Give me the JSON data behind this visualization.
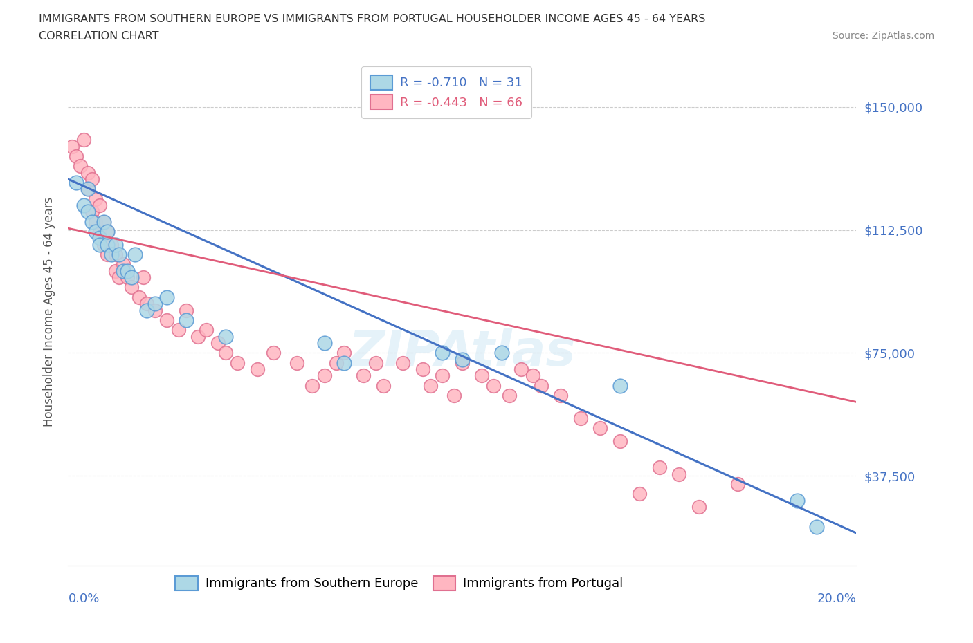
{
  "title_line1": "IMMIGRANTS FROM SOUTHERN EUROPE VS IMMIGRANTS FROM PORTUGAL HOUSEHOLDER INCOME AGES 45 - 64 YEARS",
  "title_line2": "CORRELATION CHART",
  "source": "Source: ZipAtlas.com",
  "ylabel": "Householder Income Ages 45 - 64 years",
  "xlim": [
    0.0,
    0.2
  ],
  "ylim": [
    10000,
    165000
  ],
  "yticks": [
    37500,
    75000,
    112500,
    150000
  ],
  "ytick_labels": [
    "$37,500",
    "$75,000",
    "$112,500",
    "$150,000"
  ],
  "series1_label": "Immigrants from Southern Europe",
  "series1_R": -0.71,
  "series1_N": 31,
  "series1_color": "#ADD8E6",
  "series1_edge_color": "#5B9BD5",
  "series1_line_color": "#4472C4",
  "series2_label": "Immigrants from Portugal",
  "series2_R": -0.443,
  "series2_N": 66,
  "series2_color": "#FFB6C1",
  "series2_edge_color": "#E07090",
  "series2_line_color": "#E05C7A",
  "watermark": "ZIPAtlas",
  "blue_trend_x0": 0.0,
  "blue_trend_y0": 128000,
  "blue_trend_x1": 0.2,
  "blue_trend_y1": 20000,
  "pink_trend_x0": 0.0,
  "pink_trend_y0": 113000,
  "pink_trend_x1": 0.2,
  "pink_trend_y1": 60000,
  "blue_x": [
    0.002,
    0.004,
    0.005,
    0.005,
    0.006,
    0.007,
    0.008,
    0.008,
    0.009,
    0.01,
    0.01,
    0.011,
    0.012,
    0.013,
    0.014,
    0.015,
    0.016,
    0.017,
    0.02,
    0.022,
    0.025,
    0.03,
    0.04,
    0.065,
    0.07,
    0.095,
    0.1,
    0.11,
    0.14,
    0.185,
    0.19
  ],
  "blue_y": [
    127000,
    120000,
    125000,
    118000,
    115000,
    112000,
    110000,
    108000,
    115000,
    108000,
    112000,
    105000,
    108000,
    105000,
    100000,
    100000,
    98000,
    105000,
    88000,
    90000,
    92000,
    85000,
    80000,
    78000,
    72000,
    75000,
    73000,
    75000,
    65000,
    30000,
    22000
  ],
  "pink_x": [
    0.001,
    0.002,
    0.003,
    0.004,
    0.005,
    0.005,
    0.006,
    0.006,
    0.007,
    0.007,
    0.008,
    0.008,
    0.009,
    0.009,
    0.01,
    0.01,
    0.011,
    0.012,
    0.012,
    0.013,
    0.014,
    0.015,
    0.016,
    0.018,
    0.019,
    0.02,
    0.022,
    0.025,
    0.028,
    0.03,
    0.033,
    0.035,
    0.038,
    0.04,
    0.043,
    0.048,
    0.052,
    0.058,
    0.062,
    0.065,
    0.068,
    0.07,
    0.075,
    0.078,
    0.08,
    0.085,
    0.09,
    0.092,
    0.095,
    0.098,
    0.1,
    0.105,
    0.108,
    0.112,
    0.115,
    0.118,
    0.12,
    0.125,
    0.13,
    0.135,
    0.14,
    0.145,
    0.15,
    0.155,
    0.16,
    0.17
  ],
  "pink_y": [
    138000,
    135000,
    132000,
    140000,
    130000,
    125000,
    128000,
    118000,
    122000,
    115000,
    120000,
    112000,
    108000,
    115000,
    112000,
    105000,
    108000,
    100000,
    105000,
    98000,
    102000,
    98000,
    95000,
    92000,
    98000,
    90000,
    88000,
    85000,
    82000,
    88000,
    80000,
    82000,
    78000,
    75000,
    72000,
    70000,
    75000,
    72000,
    65000,
    68000,
    72000,
    75000,
    68000,
    72000,
    65000,
    72000,
    70000,
    65000,
    68000,
    62000,
    72000,
    68000,
    65000,
    62000,
    70000,
    68000,
    65000,
    62000,
    55000,
    52000,
    48000,
    32000,
    40000,
    38000,
    28000,
    35000
  ]
}
